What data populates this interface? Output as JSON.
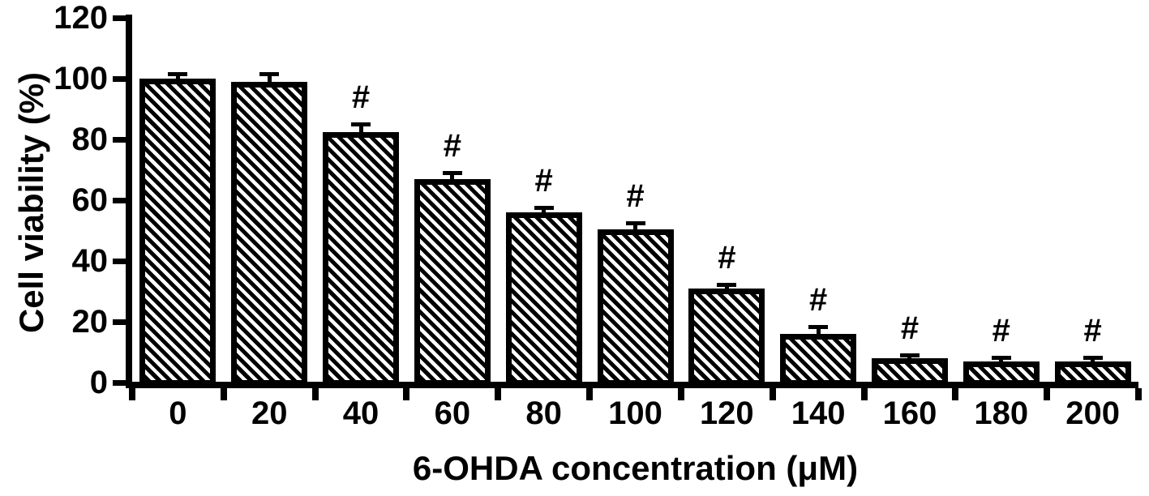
{
  "chart_data": {
    "type": "bar",
    "title": "",
    "xlabel": "6-OHDA concentration (μM)",
    "ylabel": "Cell viability (%)",
    "categories": [
      "0",
      "20",
      "40",
      "60",
      "80",
      "100",
      "120",
      "140",
      "160",
      "180",
      "200"
    ],
    "values": [
      100,
      99,
      82.5,
      67,
      56,
      50.5,
      31,
      16,
      8,
      7,
      7
    ],
    "errors": [
      1,
      2,
      2,
      1.5,
      1,
      1.5,
      0.8,
      1.8,
      0.6,
      0.8,
      0.8
    ],
    "significance": [
      "",
      "",
      "#",
      "#",
      "#",
      "#",
      "#",
      "#",
      "#",
      "#",
      "#"
    ],
    "ylim": [
      0,
      120
    ],
    "y_ticks": [
      "0",
      "20",
      "40",
      "60",
      "80",
      "100",
      "120"
    ],
    "grid": false,
    "legend": false,
    "bar_fill": "diagonal-hatch",
    "bar_color": "#000000",
    "error_bar_color": "#000000",
    "background_color": "#ffffff"
  }
}
